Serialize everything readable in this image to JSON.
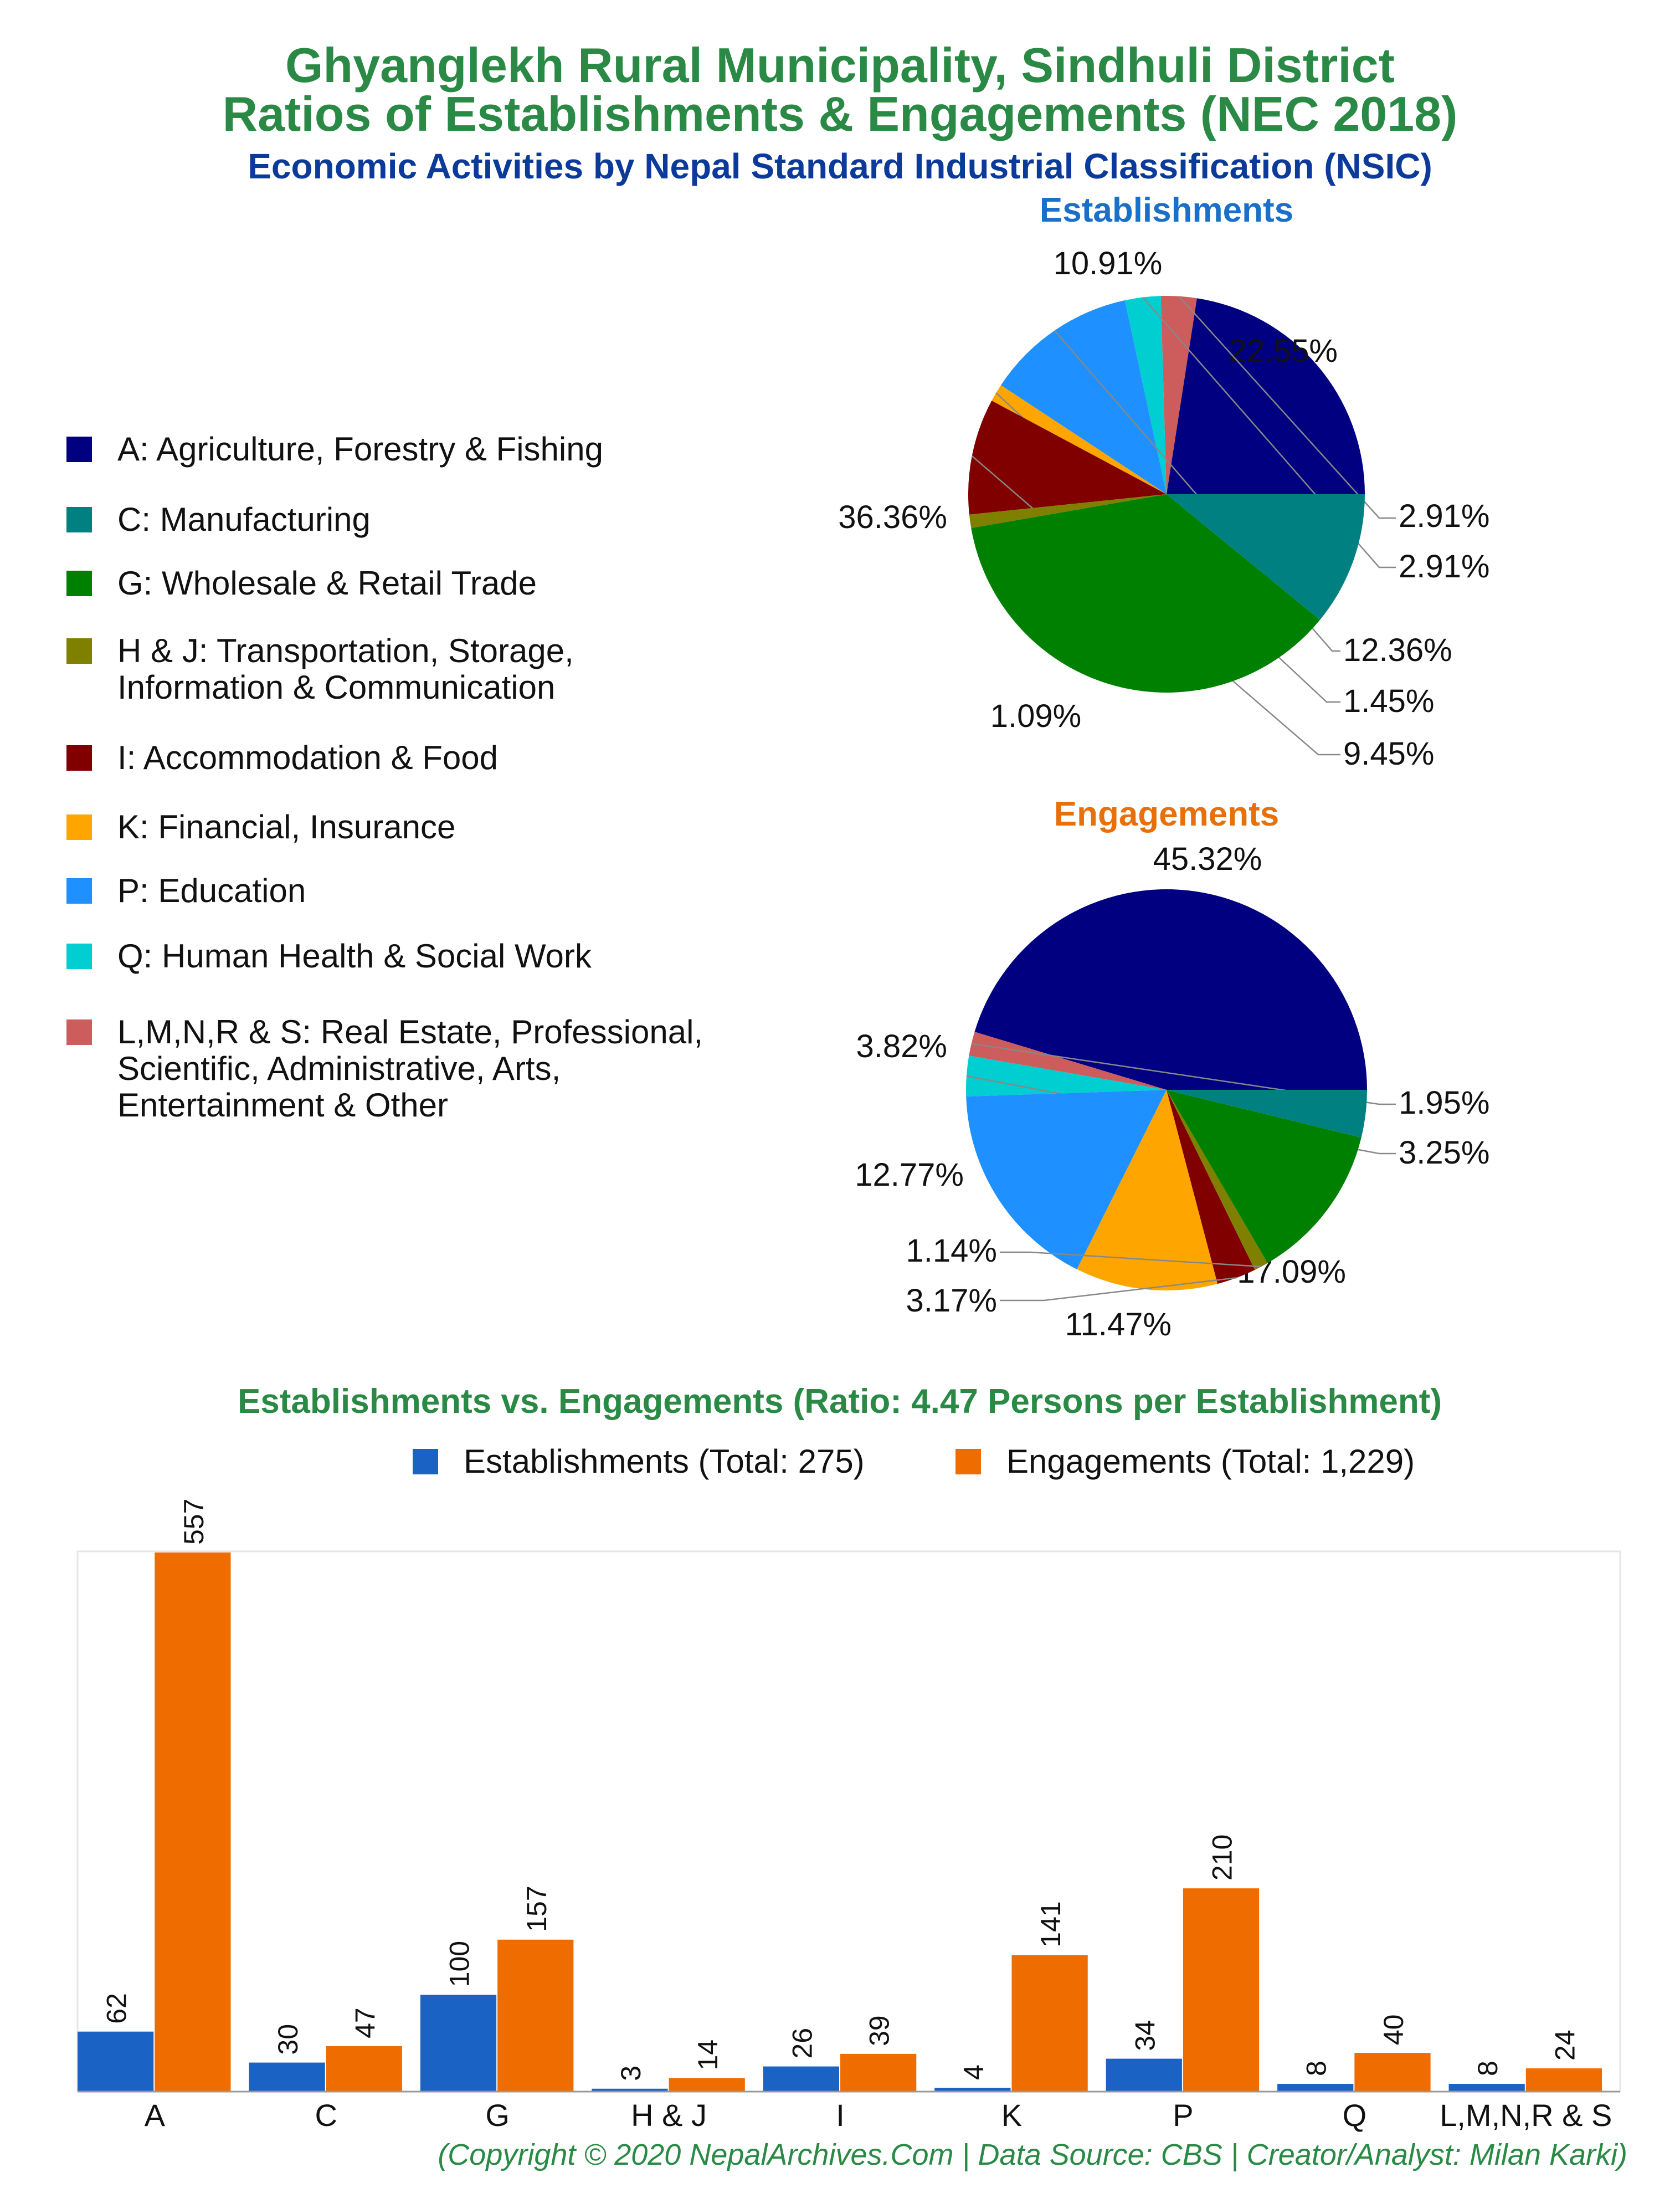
{
  "titles": {
    "line1": "Ghyanglekh Rural Municipality, Sindhuli District",
    "line2": "Ratios of Establishments & Engagements (NEC 2018)",
    "line3": "Economic Activities by Nepal Standard Industrial Classification (NSIC)"
  },
  "legend": [
    {
      "label": "A: Agriculture, Forestry & Fishing",
      "color": "#000080"
    },
    {
      "label": "C: Manufacturing",
      "color": "#008080"
    },
    {
      "label": "G: Wholesale & Retail Trade",
      "color": "#008000"
    },
    {
      "label": "H & J: Transportation, Storage,\nInformation & Communication",
      "color": "#808000"
    },
    {
      "label": "I: Accommodation & Food",
      "color": "#800000"
    },
    {
      "label": "K: Financial, Insurance",
      "color": "#FFA500"
    },
    {
      "label": "P: Education",
      "color": "#1E90FF"
    },
    {
      "label": "Q: Human Health & Social Work",
      "color": "#00CED1"
    },
    {
      "label": "L,M,N,R & S: Real Estate, Professional,\nScientific, Administrative, Arts,\nEntertainment & Other",
      "color": "#CD5C5C"
    }
  ],
  "chart_data": [
    {
      "type": "pie",
      "title": "Establishments",
      "title_color": "#1a6fc9",
      "slices": [
        {
          "category": "A",
          "value": 22.55,
          "label": "22.55%"
        },
        {
          "category": "L,M,N,R & S",
          "value": 2.91,
          "label": "2.91%"
        },
        {
          "category": "Q",
          "value": 2.91,
          "label": "2.91%"
        },
        {
          "category": "P",
          "value": 12.36,
          "label": "12.36%"
        },
        {
          "category": "K",
          "value": 1.45,
          "label": "1.45%"
        },
        {
          "category": "I",
          "value": 9.45,
          "label": "9.45%"
        },
        {
          "category": "H & J",
          "value": 1.09,
          "label": "1.09%"
        },
        {
          "category": "G",
          "value": 36.36,
          "label": "36.36%"
        },
        {
          "category": "C",
          "value": 10.91,
          "label": "10.91%"
        }
      ]
    },
    {
      "type": "pie",
      "title": "Engagements",
      "title_color": "#e8700a",
      "slices": [
        {
          "category": "A",
          "value": 45.32,
          "label": "45.32%"
        },
        {
          "category": "L,M,N,R & S",
          "value": 1.95,
          "label": "1.95%"
        },
        {
          "category": "Q",
          "value": 3.25,
          "label": "3.25%"
        },
        {
          "category": "P",
          "value": 17.09,
          "label": "17.09%"
        },
        {
          "category": "K",
          "value": 11.47,
          "label": "11.47%"
        },
        {
          "category": "I",
          "value": 3.17,
          "label": "3.17%"
        },
        {
          "category": "H & J",
          "value": 1.14,
          "label": "1.14%"
        },
        {
          "category": "G",
          "value": 12.77,
          "label": "12.77%"
        },
        {
          "category": "C",
          "value": 3.82,
          "label": "3.82%"
        }
      ]
    },
    {
      "type": "bar",
      "title": "Establishments vs. Engagements (Ratio: 4.47 Persons per Establishment)",
      "categories": [
        "A",
        "C",
        "G",
        "H & J",
        "I",
        "K",
        "P",
        "Q",
        "L,M,N,R & S"
      ],
      "series": [
        {
          "name": "Establishments (Total: 275)",
          "color": "#1a63c4",
          "values": [
            62,
            30,
            100,
            3,
            26,
            4,
            34,
            8,
            8
          ]
        },
        {
          "name": "Engagements (Total: 1,229)",
          "color": "#ef6c00",
          "values": [
            557,
            47,
            157,
            14,
            39,
            141,
            210,
            40,
            24
          ]
        }
      ],
      "ylim": [
        0,
        557
      ],
      "grid": false,
      "legend": "top"
    }
  ],
  "category_colors": {
    "A": "#000080",
    "C": "#008080",
    "G": "#008000",
    "H & J": "#808000",
    "I": "#800000",
    "K": "#FFA500",
    "P": "#1E90FF",
    "Q": "#00CED1",
    "L,M,N,R & S": "#CD5C5C"
  },
  "copyright": "(Copyright © 2020 NepalArchives.Com | Data Source: CBS | Creator/Analyst: Milan Karki)"
}
